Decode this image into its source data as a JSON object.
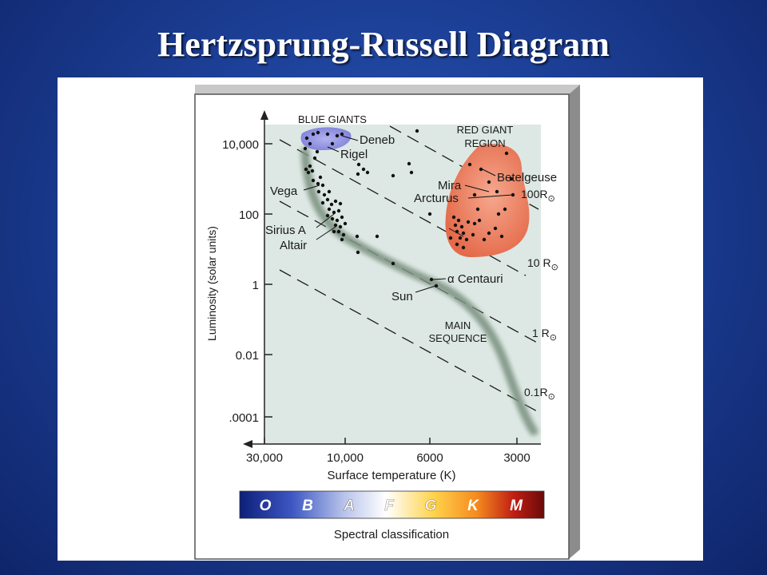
{
  "slide_title": "Hertzsprung-Russell Diagram",
  "colors": {
    "background": "#1c3f96",
    "plot_area": "#dde8e4",
    "frame_top": "#c8c8c8",
    "frame_side": "#8c8c8c",
    "blue_giants_region": "#8c8ee0",
    "red_giant_region": "#ea7a5a",
    "main_sequence_band": "#7a8a7e"
  },
  "axes": {
    "y_label": "Luminosity (solar units)",
    "x_label": "Surface temperature (K)",
    "y_ticks": [
      "10,000",
      "100",
      "1",
      "0.01",
      ".0001"
    ],
    "x_ticks": [
      "30,000",
      "10,000",
      "6000",
      "3000"
    ]
  },
  "regions": {
    "blue_giants": "BLUE GIANTS",
    "red_giant_line1": "RED GIANT",
    "red_giant_line2": "REGION",
    "main_sequence_line1": "MAIN",
    "main_sequence_line2": "SEQUENCE"
  },
  "stars": {
    "deneb": "Deneb",
    "rigel": "Rigel",
    "vega": "Vega",
    "sirius": "Sirius A",
    "altair": "Altair",
    "betelgeuse": "Betelgeuse",
    "mira": "Mira",
    "arcturus": "Arcturus",
    "alpha_centauri": "α Centauri",
    "sun": "Sun"
  },
  "radius_lines": {
    "r100": "100R",
    "r10": "10 R",
    "r1": "1 R",
    "r01": "0.1R",
    "sun_symbol": "⊙"
  },
  "spectral": {
    "label": "Spectral classification",
    "classes": [
      "O",
      "B",
      "A",
      "F",
      "G",
      "K",
      "M"
    ]
  }
}
